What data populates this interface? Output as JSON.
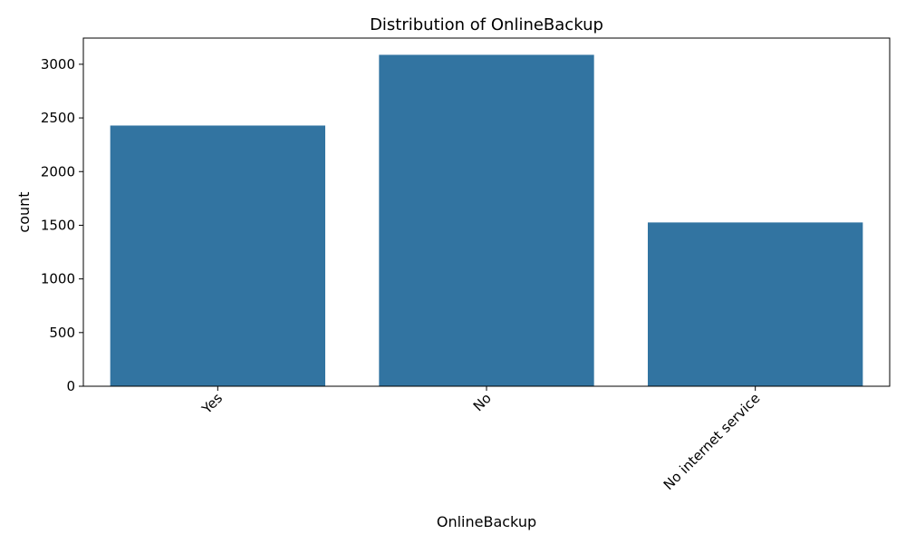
{
  "chart_data": {
    "type": "bar",
    "title": "Distribution of OnlineBackup",
    "xlabel": "OnlineBackup",
    "ylabel": "count",
    "categories": [
      "Yes",
      "No",
      "No internet service"
    ],
    "values": [
      2429,
      3088,
      1526
    ],
    "ylim": [
      0,
      3244
    ],
    "yticks": [
      0,
      500,
      1000,
      1500,
      2000,
      2500,
      3000
    ],
    "xtick_rotation_deg": 45,
    "grid": false,
    "legend": "none",
    "bar_color": "#3274a1"
  }
}
